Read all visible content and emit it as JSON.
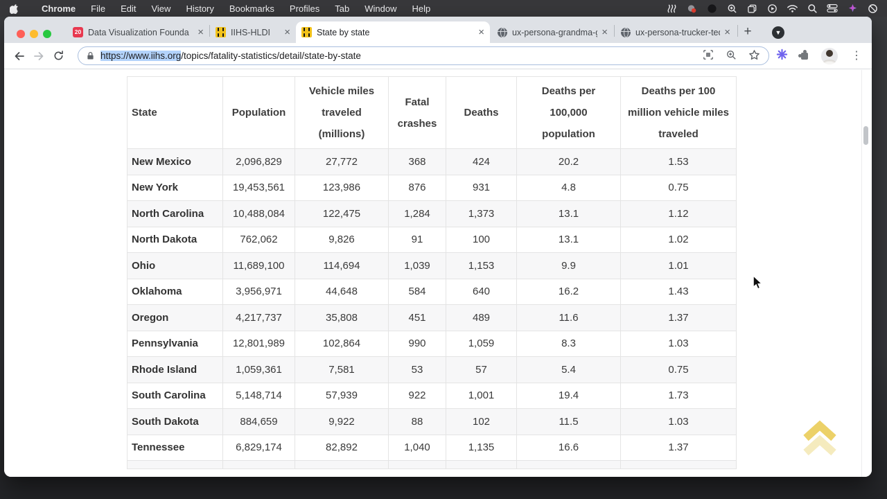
{
  "menu_bar": {
    "items": [
      "Chrome",
      "File",
      "Edit",
      "View",
      "History",
      "Bookmarks",
      "Profiles",
      "Tab",
      "Window",
      "Help"
    ],
    "status_icons": [
      "shortcuts-icon",
      "screen-record-icon",
      "dark-mode-icon",
      "zoom-icon",
      "windows-stack-icon",
      "play-icon",
      "wifi-icon",
      "spotlight-icon",
      "control-center-icon",
      "assistant-icon",
      "do-not-disturb-icon"
    ]
  },
  "tab_strip": {
    "tabs": [
      {
        "title": "Data Visualization Founda",
        "favicon": "calendar-20",
        "active": false
      },
      {
        "title": "IIHS-HLDI",
        "favicon": "road",
        "active": false
      },
      {
        "title": "State by state",
        "favicon": "road",
        "active": true
      },
      {
        "title": "ux-persona-grandma-gin",
        "favicon": "globe",
        "active": false
      },
      {
        "title": "ux-persona-trucker-ted",
        "favicon": "globe",
        "active": false
      }
    ],
    "close_glyph": "×",
    "new_tab_glyph": "+",
    "tab_search_glyph": "▼"
  },
  "toolbar": {
    "url_selected": "https://www.iihs.org",
    "url_rest": "/topics/fatality-statistics/detail/state-by-state",
    "menu_glyph": "⋮"
  },
  "page": {
    "table": {
      "headers": [
        "State",
        "Population",
        "Vehicle miles traveled (millions)",
        "Fatal crashes",
        "Deaths",
        "Deaths per 100,000 population",
        "Deaths per 100 million vehicle miles traveled"
      ],
      "rows": [
        [
          "New Mexico",
          "2,096,829",
          "27,772",
          "368",
          "424",
          "20.2",
          "1.53"
        ],
        [
          "New York",
          "19,453,561",
          "123,986",
          "876",
          "931",
          "4.8",
          "0.75"
        ],
        [
          "North Carolina",
          "10,488,084",
          "122,475",
          "1,284",
          "1,373",
          "13.1",
          "1.12"
        ],
        [
          "North Dakota",
          "762,062",
          "9,826",
          "91",
          "100",
          "13.1",
          "1.02"
        ],
        [
          "Ohio",
          "11,689,100",
          "114,694",
          "1,039",
          "1,153",
          "9.9",
          "1.01"
        ],
        [
          "Oklahoma",
          "3,956,971",
          "44,648",
          "584",
          "640",
          "16.2",
          "1.43"
        ],
        [
          "Oregon",
          "4,217,737",
          "35,808",
          "451",
          "489",
          "11.6",
          "1.37"
        ],
        [
          "Pennsylvania",
          "12,801,989",
          "102,864",
          "990",
          "1,059",
          "8.3",
          "1.03"
        ],
        [
          "Rhode Island",
          "1,059,361",
          "7,581",
          "53",
          "57",
          "5.4",
          "0.75"
        ],
        [
          "South Carolina",
          "5,148,714",
          "57,939",
          "922",
          "1,001",
          "19.4",
          "1.73"
        ],
        [
          "South Dakota",
          "884,659",
          "9,922",
          "88",
          "102",
          "11.5",
          "1.03"
        ],
        [
          "Tennessee",
          "6,829,174",
          "82,892",
          "1,040",
          "1,135",
          "16.6",
          "1.37"
        ]
      ]
    }
  },
  "colors": {
    "selection_blue": "#b3d3fb",
    "tab_strip_bg": "#dee1e6",
    "menubar_bg": "#38383b",
    "row_alt": "#f7f7f8",
    "table_border": "#e4e4e4",
    "back_to_top_gold": "#e9c94d"
  }
}
